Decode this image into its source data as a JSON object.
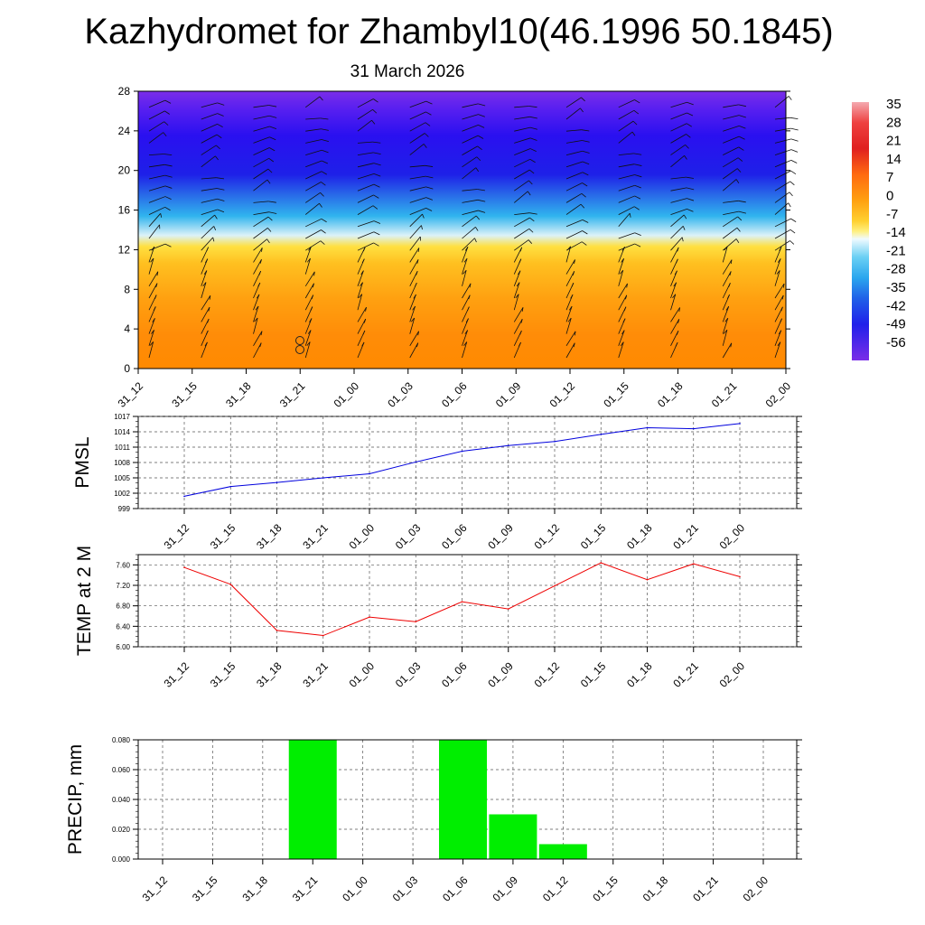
{
  "title": "Kazhydromet for Zhambyl10(46.1996 50.1845)",
  "subtitle": "31 March 2026",
  "colors": {
    "pmsl_line": "#0000dd",
    "temp_line": "#ee0000",
    "precip_bar": "#00ee00",
    "grid": "#555555"
  },
  "chart_data": [
    {
      "type": "heatmap",
      "name": "cross-section",
      "title": "",
      "description_of_axes": "vertical levels 0-28 vs forecast time",
      "y_ticks": [
        "0",
        "4",
        "8",
        "12",
        "16",
        "20",
        "24",
        "28"
      ],
      "ylim": [
        0,
        28
      ],
      "time_labels": [
        "31_12",
        "31_15",
        "31_18",
        "31_21",
        "01_00",
        "01_03",
        "01_06",
        "01_09",
        "01_12",
        "01_15",
        "01_18",
        "01_21",
        "02_00"
      ],
      "colorbar_labels": [
        "35",
        "28",
        "21",
        "14",
        "7",
        "0",
        "-7",
        "-14",
        "-21",
        "-28",
        "-35",
        "-42",
        "-49",
        "-56"
      ],
      "colorbar_range": [
        -63,
        35
      ]
    },
    {
      "type": "line",
      "name": "pmsl",
      "ylabel": "PMSL",
      "y_ticks": [
        "999",
        "1002",
        "1005",
        "1008",
        "1011",
        "1014",
        "1017"
      ],
      "ylim": [
        999,
        1017
      ],
      "categories": [
        "31_12",
        "31_15",
        "31_18",
        "31_21",
        "01_00",
        "01_03",
        "01_06",
        "01_09",
        "01_12",
        "01_15",
        "01_18",
        "01_21",
        "02_00"
      ],
      "values": [
        1001.4,
        1003.3,
        1004.1,
        1005.0,
        1005.8,
        1008.1,
        1010.2,
        1011.3,
        1012.1,
        1013.5,
        1014.8,
        1014.6,
        1015.6
      ]
    },
    {
      "type": "line",
      "name": "temp2m",
      "ylabel": "TEMP at 2 M",
      "y_ticks": [
        "6.00",
        "6.40",
        "6.80",
        "7.20",
        "7.60"
      ],
      "ylim": [
        6.0,
        7.8
      ],
      "categories": [
        "31_12",
        "31_15",
        "31_18",
        "31_21",
        "01_00",
        "01_03",
        "01_06",
        "01_09",
        "01_12",
        "01_15",
        "01_18",
        "01_21",
        "02_00"
      ],
      "values": [
        7.55,
        7.22,
        6.32,
        6.22,
        6.58,
        6.49,
        6.88,
        6.74,
        7.19,
        7.64,
        7.31,
        7.62,
        7.37
      ]
    },
    {
      "type": "bar",
      "name": "precip",
      "ylabel": "PRECIP, mm",
      "y_ticks": [
        "0.000",
        "0.020",
        "0.040",
        "0.060",
        "0.080"
      ],
      "ylim": [
        0,
        0.08
      ],
      "categories": [
        "31_12",
        "31_15",
        "31_18",
        "31_21",
        "01_00",
        "01_03",
        "01_06",
        "01_09",
        "01_12",
        "01_15",
        "01_18",
        "01_21",
        "02_00"
      ],
      "values": [
        0,
        0,
        0,
        0.08,
        0,
        0,
        0.08,
        0.03,
        0.01,
        0,
        0,
        0,
        0
      ]
    }
  ]
}
